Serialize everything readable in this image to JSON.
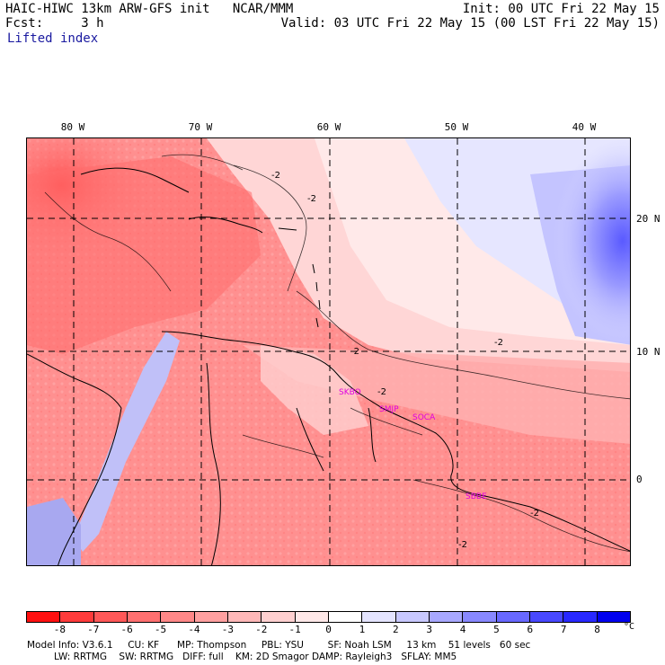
{
  "header": {
    "model_line": "HAIC-HIWC 13km ARW-GFS init   NCAR/MMM",
    "forecast_line": "Fcst:     3 h",
    "field_name": "Lifted index",
    "init_line": "Init: 00 UTC Fri 22 May 15",
    "valid_line": "Valid: 03 UTC Fri 22 May 15 (00 LST Fri 22 May 15)"
  },
  "map": {
    "longitude_labels": [
      "80 W",
      "70 W",
      "60 W",
      "50 W",
      "40 W"
    ],
    "latitude_labels": [
      "20 N",
      "10 N",
      "0"
    ],
    "contour_labels": [
      "-2",
      "-2",
      "-2",
      "-2",
      "-2",
      "-2",
      "-2"
    ],
    "stations": [
      "SKBO",
      "SMJP",
      "SOCA",
      "SBBE"
    ]
  },
  "colorbar": {
    "labels": [
      "-8",
      "-7",
      "-6",
      "-5",
      "-4",
      "-3",
      "-2",
      "-1",
      "0",
      "1",
      "2",
      "3",
      "4",
      "5",
      "6",
      "7",
      "8"
    ],
    "unit": "°C",
    "colors": [
      "#ff1010",
      "#ff3b3b",
      "#ff5858",
      "#ff7070",
      "#ff8888",
      "#ffa0a0",
      "#ffb8b8",
      "#ffd0d0",
      "#ffe8e8",
      "#ffffff",
      "#e4e4ff",
      "#c8c8ff",
      "#a8a8ff",
      "#8888ff",
      "#6868ff",
      "#4848ff",
      "#2828ff",
      "#0000ee"
    ]
  },
  "footer": {
    "line1": "Model Info: V3.6.1     CU: KF      MP: Thompson     PBL: YSU        SF: Noah LSM     13 km    51 levels   60 sec",
    "line2": "         LW: RRTMG    SW: RRTMG   DIFF: full    KM: 2D Smagor DAMP: Rayleigh3   SFLAY: MM5"
  }
}
